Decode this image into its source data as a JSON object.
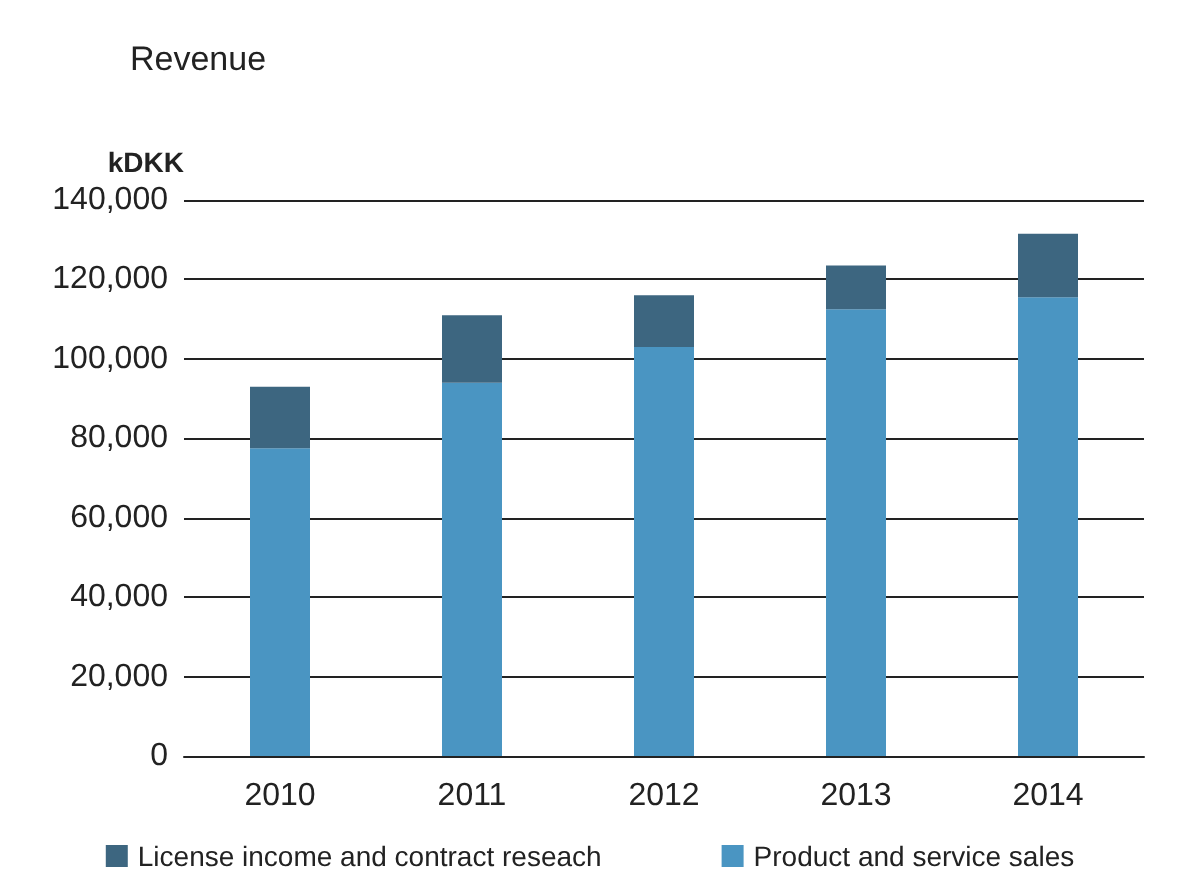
{
  "chart_data": {
    "type": "bar",
    "title": "Revenue",
    "ylabel": "kDKK",
    "stacked": true,
    "categories": [
      "2010",
      "2011",
      "2012",
      "2013",
      "2014"
    ],
    "series": [
      {
        "name": "Product and service sales",
        "color": "#4a95c2",
        "values": [
          77500,
          94000,
          103000,
          112500,
          115500
        ]
      },
      {
        "name": "License income and contract reseach",
        "color": "#3d6680",
        "values": [
          15500,
          17000,
          13000,
          11000,
          16000
        ]
      }
    ],
    "ylim": [
      0,
      140000
    ],
    "yticks": [
      0,
      {
        "value": 20000,
        "label": "20,000"
      },
      {
        "value": 40000,
        "label": "40,000"
      },
      {
        "value": 60000,
        "label": "60,000"
      },
      {
        "value": 80000,
        "label": "80,000"
      },
      {
        "value": 100000,
        "label": "100,000"
      },
      {
        "value": 120000,
        "label": "120,000"
      },
      {
        "value": 140000,
        "label": "140,000"
      }
    ],
    "grid": "y",
    "legend": "bottom"
  }
}
